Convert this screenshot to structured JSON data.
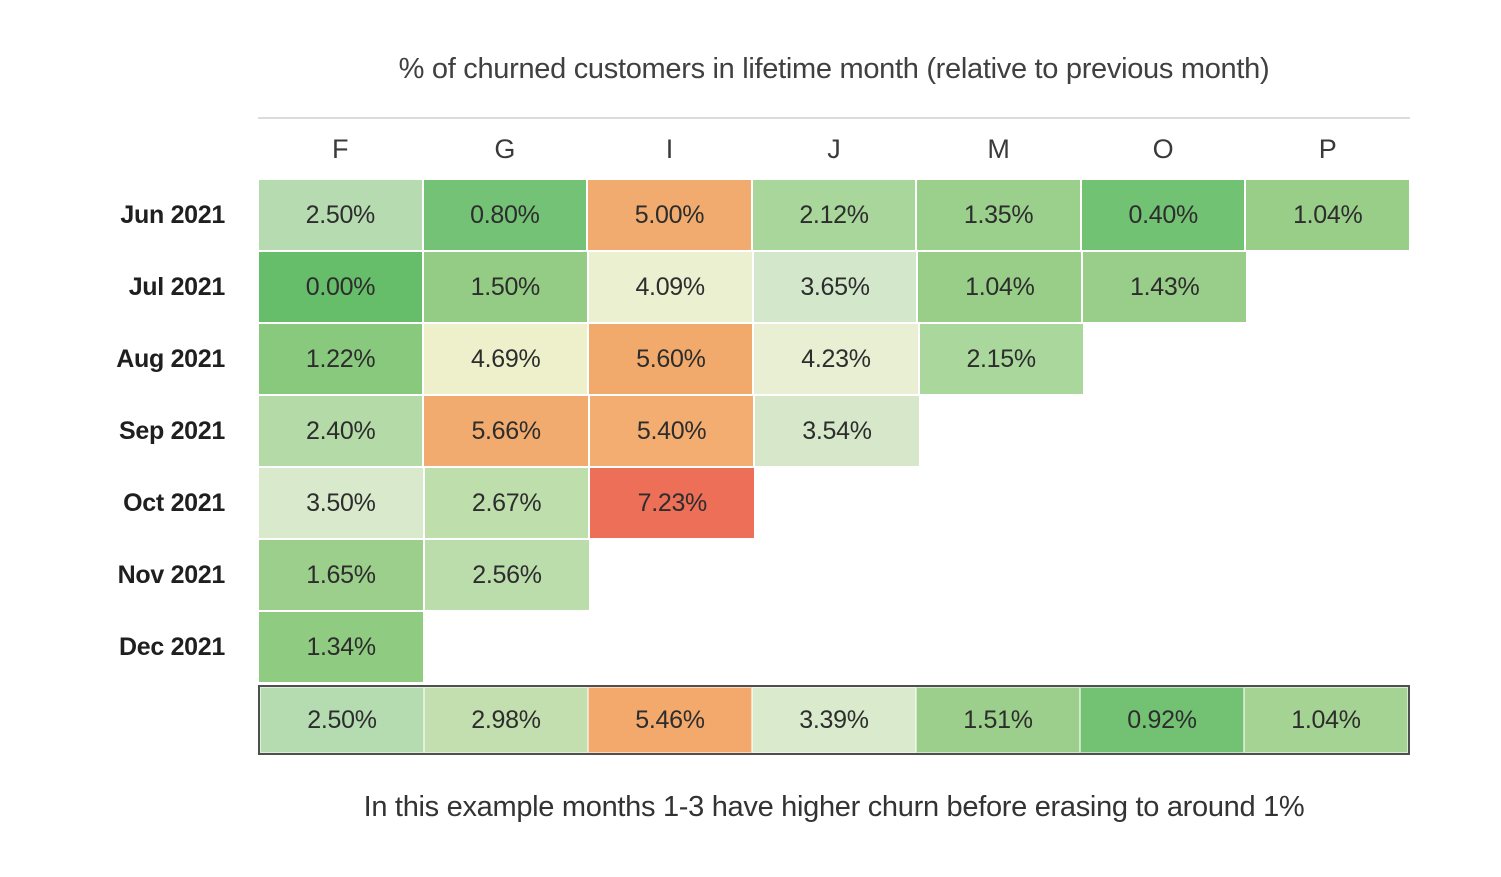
{
  "title": "% of churned customers in lifetime month (relative to previous month)",
  "caption": "In this example months 1-3 have higher churn before erasing to around 1%",
  "columns": [
    "F",
    "G",
    "I",
    "J",
    "M",
    "O",
    "P"
  ],
  "rows": [
    {
      "label": "Jun 2021",
      "cells": [
        {
          "text": "2.50%",
          "color": "#b6dbb1"
        },
        {
          "text": "0.80%",
          "color": "#74c275"
        },
        {
          "text": "5.00%",
          "color": "#f2ab6e"
        },
        {
          "text": "2.12%",
          "color": "#a9d69b"
        },
        {
          "text": "1.35%",
          "color": "#9bd08c"
        },
        {
          "text": "0.40%",
          "color": "#72c274"
        },
        {
          "text": "1.04%",
          "color": "#99ce89"
        }
      ]
    },
    {
      "label": "Jul 2021",
      "cells": [
        {
          "text": "0.00%",
          "color": "#66bd6a"
        },
        {
          "text": "1.50%",
          "color": "#94cc85"
        },
        {
          "text": "4.09%",
          "color": "#eaf0d0"
        },
        {
          "text": "3.65%",
          "color": "#d3e7cb"
        },
        {
          "text": "1.04%",
          "color": "#98ce88"
        },
        {
          "text": "1.43%",
          "color": "#98ce89"
        }
      ]
    },
    {
      "label": "Aug 2021",
      "cells": [
        {
          "text": "1.22%",
          "color": "#89c97e"
        },
        {
          "text": "4.69%",
          "color": "#edf0cb"
        },
        {
          "text": "5.60%",
          "color": "#f2aa6c"
        },
        {
          "text": "4.23%",
          "color": "#e9efd2"
        },
        {
          "text": "2.15%",
          "color": "#aad79c"
        }
      ]
    },
    {
      "label": "Sep 2021",
      "cells": [
        {
          "text": "2.40%",
          "color": "#b3daa7"
        },
        {
          "text": "5.66%",
          "color": "#f2ab6e"
        },
        {
          "text": "5.40%",
          "color": "#f3ad70"
        },
        {
          "text": "3.54%",
          "color": "#d6e8c9"
        }
      ]
    },
    {
      "label": "Oct 2021",
      "cells": [
        {
          "text": "3.50%",
          "color": "#d9eacc"
        },
        {
          "text": "2.67%",
          "color": "#bedeac"
        },
        {
          "text": "7.23%",
          "color": "#ee6f57"
        }
      ]
    },
    {
      "label": "Nov 2021",
      "cells": [
        {
          "text": "1.65%",
          "color": "#9bcf8b"
        },
        {
          "text": "2.56%",
          "color": "#bbddab"
        }
      ]
    },
    {
      "label": "Dec 2021",
      "cells": [
        {
          "text": "1.34%",
          "color": "#90cb82"
        }
      ]
    }
  ],
  "summary_row": {
    "cells": [
      {
        "text": "2.50%",
        "color": "#b5dbb1"
      },
      {
        "text": "2.98%",
        "color": "#c3dfb0"
      },
      {
        "text": "5.46%",
        "color": "#f2a96b"
      },
      {
        "text": "3.39%",
        "color": "#d9eacd"
      },
      {
        "text": "1.51%",
        "color": "#9bcf8b"
      },
      {
        "text": "0.92%",
        "color": "#73c274"
      },
      {
        "text": "1.04%",
        "color": "#a5d394"
      }
    ]
  },
  "chart_data": {
    "type": "heatmap",
    "title": "% of churned customers in lifetime month (relative to previous month)",
    "x_labels": [
      "F",
      "G",
      "I",
      "J",
      "M",
      "O",
      "P"
    ],
    "y_labels": [
      "Jun 2021",
      "Jul 2021",
      "Aug 2021",
      "Sep 2021",
      "Oct 2021",
      "Nov 2021",
      "Dec 2021"
    ],
    "values_percent": [
      [
        2.5,
        0.8,
        5.0,
        2.12,
        1.35,
        0.4,
        1.04
      ],
      [
        0.0,
        1.5,
        4.09,
        3.65,
        1.04,
        1.43,
        null
      ],
      [
        1.22,
        4.69,
        5.6,
        4.23,
        2.15,
        null,
        null
      ],
      [
        2.4,
        5.66,
        5.4,
        3.54,
        null,
        null,
        null
      ],
      [
        3.5,
        2.67,
        7.23,
        null,
        null,
        null,
        null
      ],
      [
        1.65,
        2.56,
        null,
        null,
        null,
        null,
        null
      ],
      [
        1.34,
        null,
        null,
        null,
        null,
        null,
        null
      ]
    ],
    "summary_values_percent": [
      2.5,
      2.98,
      5.46,
      3.39,
      1.51,
      0.92,
      1.04
    ],
    "value_format": "0.00%",
    "value_range": [
      0.0,
      7.23
    ],
    "color_scale": {
      "low": "#66bd6a",
      "mid": "#ecf0cf",
      "high": "#ee6f57",
      "description": "green = low churn, pale yellow = mid, orange/red = high churn"
    },
    "caption": "In this example months 1-3 have higher churn before erasing to around 1%"
  }
}
